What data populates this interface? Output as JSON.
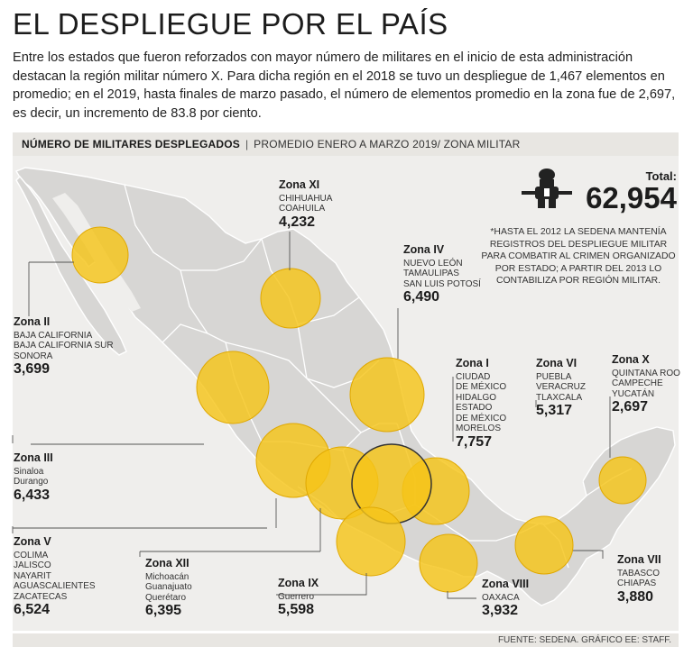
{
  "title": "EL DESPLIEGUE POR EL PAÍS",
  "intro": "Entre los estados que fueron reforzados con mayor número de militares en el inicio de esta administración destacan la región militar número X. Para dicha región en el 2018 se tuvo un despliegue de 1,467 elementos en promedio; en el 2019, hasta finales de marzo pasado, el número de elementos promedio en la zona fue de 2,697, es decir, un incremento de 83.8 por ciento.",
  "subtitle": {
    "bold": "NÚMERO DE MILITARES DESPLEGADOS",
    "separator": "|",
    "rest": "PROMEDIO ENERO A MARZO 2019/ ZONA MILITAR"
  },
  "total": {
    "label": "Total:",
    "value": "62,954",
    "icon": "soldier-icon"
  },
  "note": "*HASTA EL 2012 LA SEDENA MANTENÍA REGISTROS DEL DESPLIEGUE MILITAR PARA COMBATIR AL CRIMEN ORGANIZADO POR ESTADO; A PARTIR DEL 2013 LO CONTABILIZA POR REGIÓN MILITAR.",
  "footer": "FUENTE: SEDENA. GRÁFICO EE: STAFF.",
  "colors": {
    "circle": "#f5c518",
    "land": "#d7d6d4",
    "border": "#ffffff",
    "bar": "#e8e6e2"
  },
  "zones": [
    {
      "name": "Zona XI",
      "states": [
        "CHIHUAHUA",
        "COAHUILA"
      ],
      "value": "4,232",
      "military_personnel": 4232
    },
    {
      "name": "Zona IV",
      "states": [
        "NUEVO LEÓN",
        "TAMAULIPAS",
        "SAN LUIS POTOSÍ"
      ],
      "value": "6,490",
      "military_personnel": 6490
    },
    {
      "name": "Zona II",
      "states": [
        "BAJA CALIFORNIA",
        "BAJA CALIFORNIA SUR",
        "SONORA"
      ],
      "value": "3,699",
      "military_personnel": 3699
    },
    {
      "name": "Zona I",
      "states": [
        "CIUDAD",
        "DE MÉXICO",
        "HIDALGO",
        "ESTADO",
        "DE MÉXICO",
        "MORELOS"
      ],
      "value": "7,757",
      "military_personnel": 7757
    },
    {
      "name": "Zona VI",
      "states": [
        "PUEBLA",
        "VERACRUZ",
        "TLAXCALA"
      ],
      "value": "5,317",
      "military_personnel": 5317
    },
    {
      "name": "Zona X",
      "states": [
        "QUINTANA ROO",
        "CAMPECHE",
        "YUCATÁN"
      ],
      "value": "2,697",
      "military_personnel": 2697
    },
    {
      "name": "Zona III",
      "states": [
        "Sinaloa",
        "Durango"
      ],
      "value": "6,433",
      "military_personnel": 6433
    },
    {
      "name": "Zona V",
      "states": [
        "COLIMA",
        "JALISCO",
        "NAYARIT",
        "AGUASCALIENTES",
        "ZACATECAS"
      ],
      "value": "6,524",
      "military_personnel": 6524
    },
    {
      "name": "Zona XII",
      "states": [
        "Michoacán",
        "Guanajuato",
        "Querétaro"
      ],
      "value": "6,395",
      "military_personnel": 6395
    },
    {
      "name": "Zona IX",
      "states": [
        "Guerrero"
      ],
      "value": "5,598",
      "military_personnel": 5598
    },
    {
      "name": "Zona VIII",
      "states": [
        "OAXACA"
      ],
      "value": "3,932",
      "military_personnel": 3932
    },
    {
      "name": "Zona VII",
      "states": [
        "TABASCO",
        "CHIAPAS"
      ],
      "value": "3,880",
      "military_personnel": 3880
    }
  ]
}
